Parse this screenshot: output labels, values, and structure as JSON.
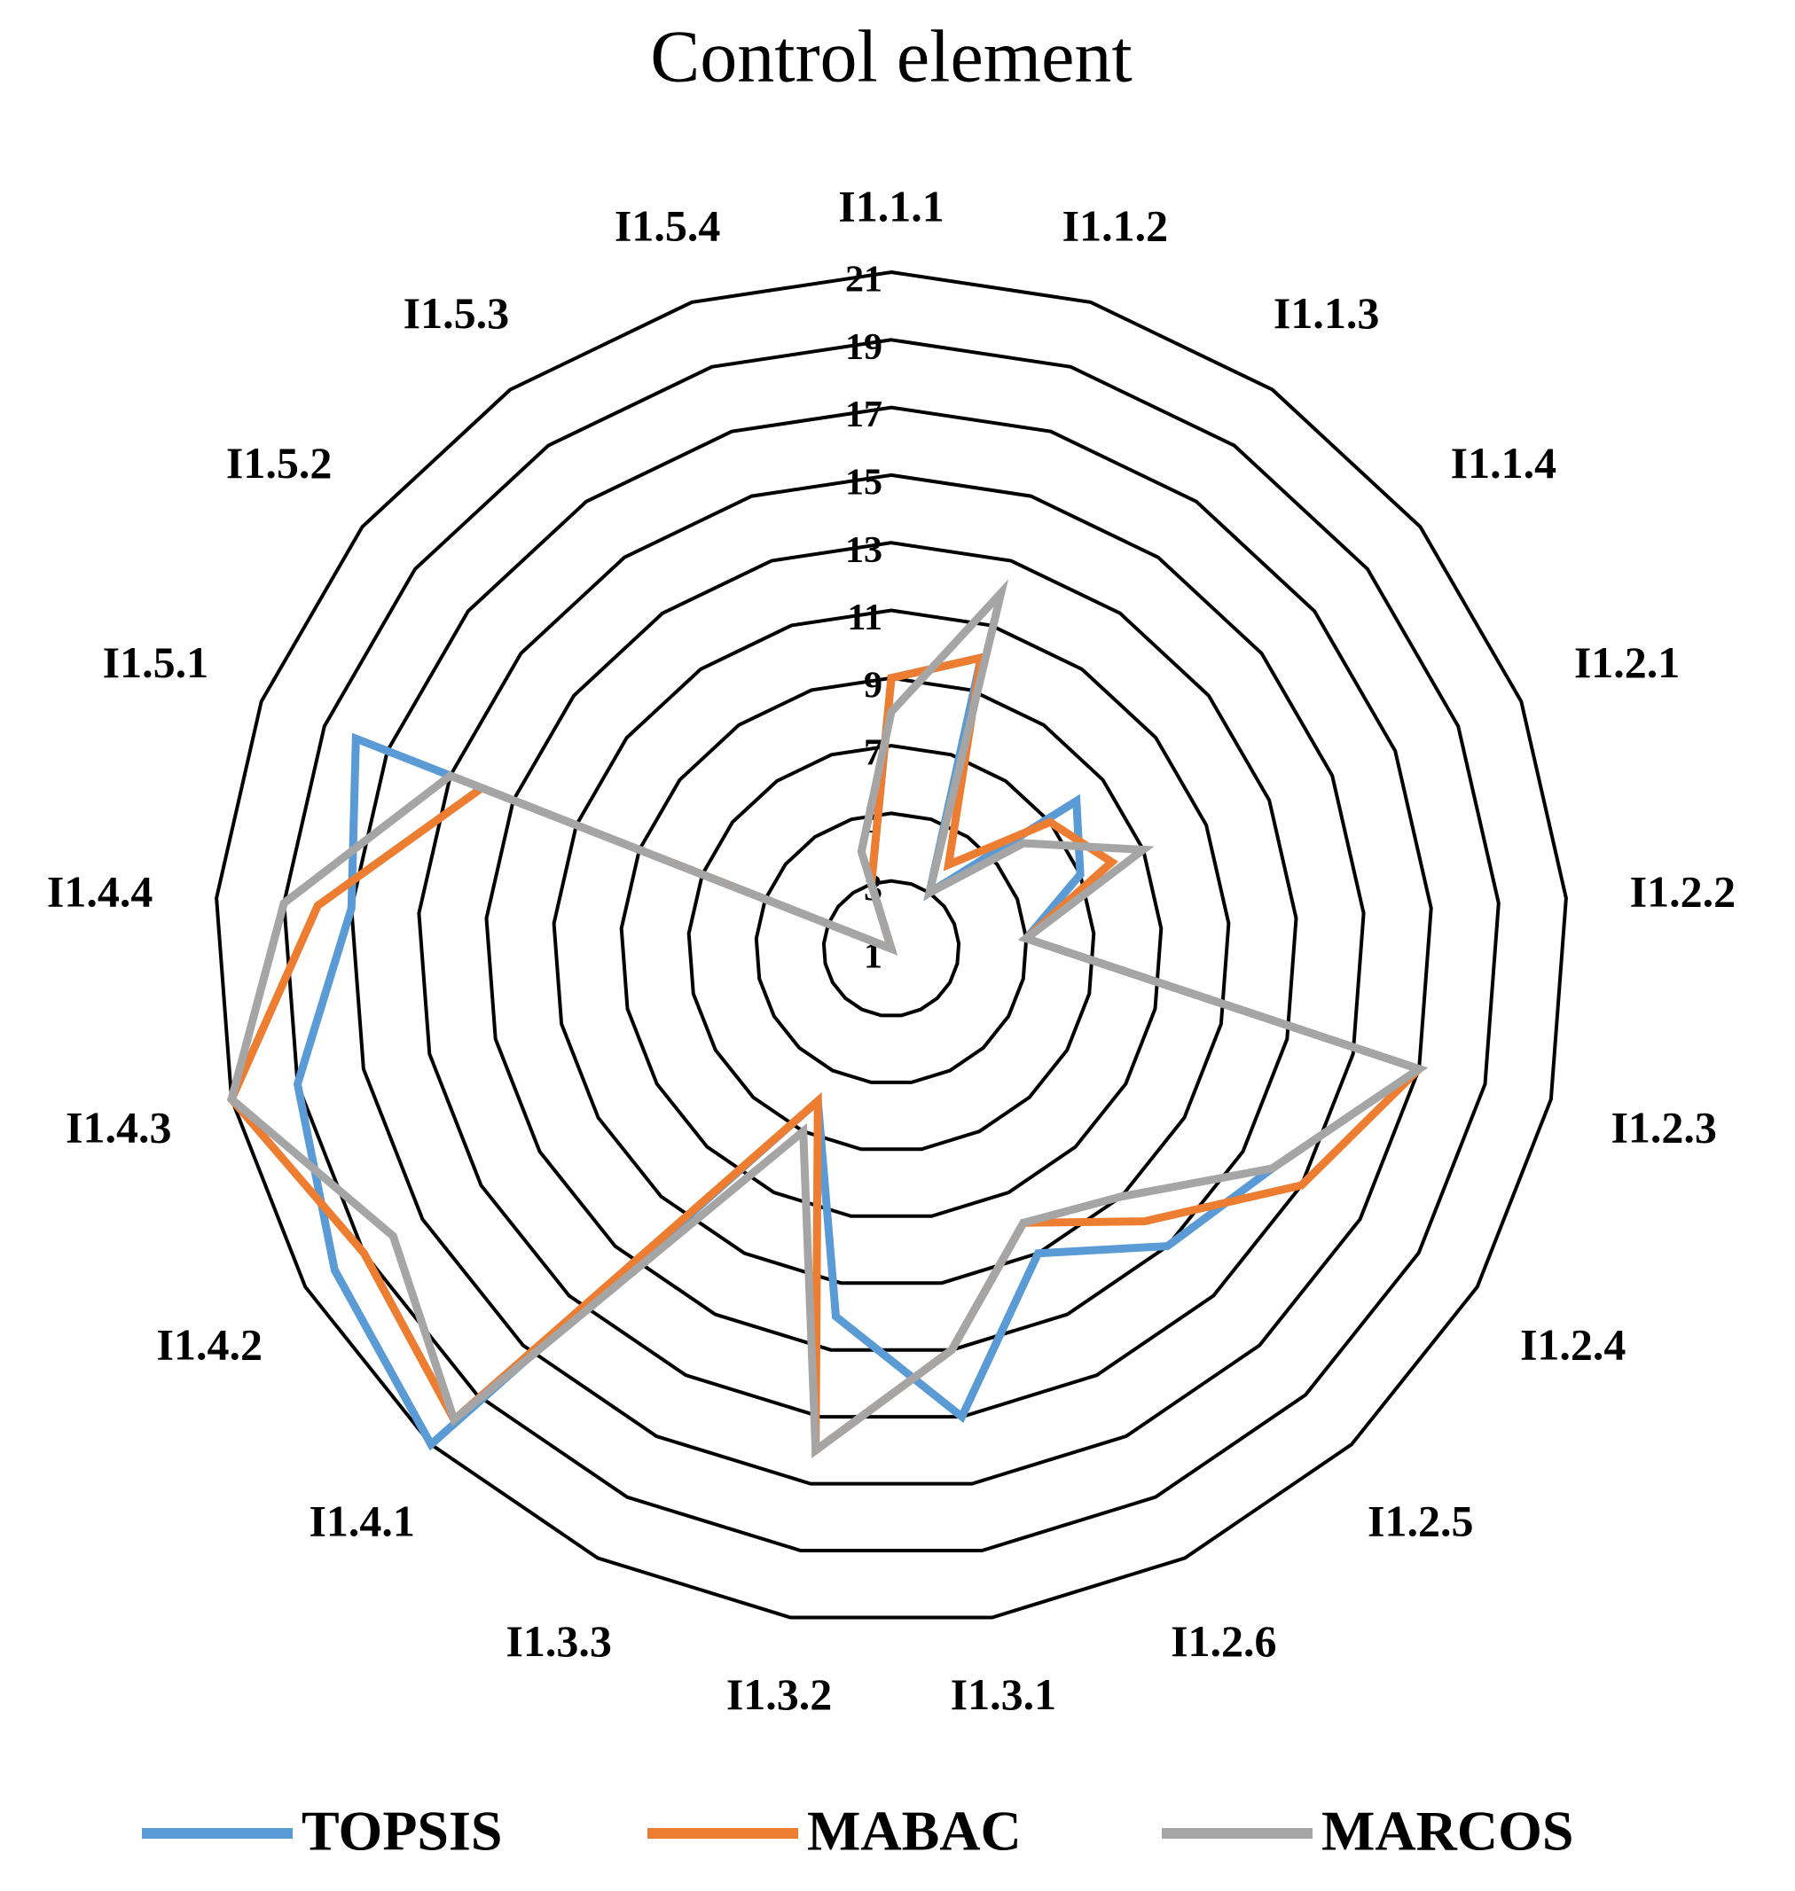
{
  "chart_data": {
    "type": "radar",
    "title": "Control element",
    "categories": [
      "I1.1.1",
      "I1.1.2",
      "I1.1.3",
      "I1.1.4",
      "I1.2.1",
      "I1.2.2",
      "I1.2.3",
      "I1.2.4",
      "I1.2.5",
      "I1.2.6",
      "I1.3.1",
      "I1.3.2",
      "I1.3.3",
      "I1.4.1",
      "I1.4.2",
      "I1.4.3",
      "I1.4.4",
      "I1.5.1",
      "I1.5.2",
      "I1.5.3",
      "I1.5.4"
    ],
    "series": [
      {
        "name": "TOPSIS",
        "color": "#5b9bd5",
        "values": [
          9,
          10,
          3,
          8,
          7,
          5,
          17,
          14,
          13,
          11,
          15,
          12,
          6,
          21,
          20,
          19,
          17,
          18,
          1,
          1,
          3
        ]
      },
      {
        "name": "MABAC",
        "color": "#ed7d31",
        "values": [
          9,
          10,
          4,
          7,
          8,
          5,
          17,
          15,
          12,
          10,
          13,
          16,
          6,
          20,
          19,
          21,
          18,
          14,
          1,
          1,
          3
        ]
      },
      {
        "name": "MARCOS",
        "color": "#a5a5a5",
        "values": [
          8,
          12,
          3,
          6,
          9,
          5,
          17,
          14,
          11,
          10,
          13,
          16,
          7,
          20,
          18,
          21,
          19,
          15,
          1,
          1,
          4
        ]
      }
    ],
    "ylim": [
      1,
      21
    ],
    "yticks": [
      1,
      3,
      5,
      7,
      9,
      11,
      13,
      15,
      17,
      19,
      21
    ],
    "grid": true,
    "legend": "bottom"
  }
}
